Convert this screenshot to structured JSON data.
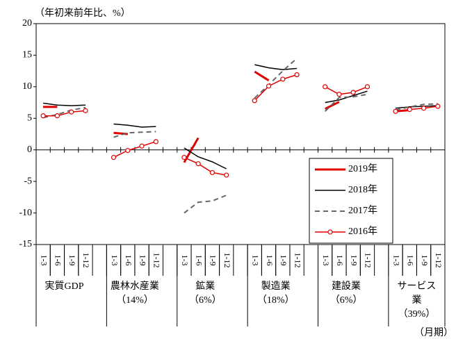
{
  "chart_data": {
    "type": "line",
    "y_axis_label": "（年初来前年比、%）",
    "x_axis_label": "（月期）",
    "ylim": [
      -15,
      20
    ],
    "yticks": [
      20,
      15,
      10,
      5,
      0,
      -5,
      -10,
      -15
    ],
    "grid": false,
    "legend_position": "lower-right",
    "categories": [
      "1-3",
      "1-6",
      "1-9",
      "1-12",
      null,
      "1-3",
      "1-6",
      "1-9",
      "1-12",
      null,
      "1-3",
      "1-6",
      "1-9",
      "1-12",
      null,
      "1-3",
      "1-6",
      "1-9",
      "1-12",
      null,
      "1-3",
      "1-6",
      "1-9",
      "1-12",
      null,
      "1-3",
      "1-6",
      "1-9",
      "1-12"
    ],
    "groups": [
      [
        "実質GDP"
      ],
      [
        "農林水産業",
        "（14%）"
      ],
      [
        "鉱業",
        "（6%）"
      ],
      [
        "製造業",
        "（18%）"
      ],
      [
        "建設業",
        "（6%）"
      ],
      [
        "サービス",
        "業",
        "（39%）"
      ]
    ],
    "series": [
      {
        "name": "2019年",
        "color": "#e00000",
        "style": "bold",
        "values": [
          6.8,
          6.8,
          null,
          null,
          null,
          2.7,
          2.5,
          null,
          null,
          null,
          -2.0,
          1.9,
          null,
          null,
          null,
          12.4,
          11.0,
          null,
          null,
          null,
          6.5,
          7.6,
          null,
          null,
          null,
          6.1,
          6.3,
          null,
          null
        ]
      },
      {
        "name": "2018年",
        "color": "#000000",
        "style": "solid",
        "values": [
          7.4,
          7.1,
          7.0,
          7.1,
          null,
          4.1,
          3.9,
          3.6,
          3.7,
          null,
          0.3,
          -1.1,
          -1.9,
          -3.0,
          null,
          13.5,
          13.0,
          12.7,
          12.9,
          null,
          7.5,
          7.9,
          8.6,
          9.3,
          null,
          6.6,
          6.8,
          6.9,
          7.0
        ]
      },
      {
        "name": "2017年",
        "color": "#666666",
        "style": "dashed",
        "values": [
          5.1,
          5.6,
          6.3,
          6.7,
          null,
          2.0,
          2.7,
          2.8,
          2.9,
          null,
          -10.0,
          -8.3,
          -8.1,
          -7.2,
          null,
          8.2,
          10.3,
          12.5,
          14.5,
          null,
          6.1,
          8.3,
          8.4,
          8.8,
          null,
          6.3,
          6.8,
          7.2,
          7.3
        ]
      },
      {
        "name": "2016年",
        "color": "#e00000",
        "style": "marker",
        "values": [
          5.4,
          5.4,
          6.0,
          6.2,
          null,
          -1.2,
          -0.1,
          0.6,
          1.3,
          null,
          -1.2,
          -2.2,
          -3.6,
          -4.0,
          null,
          7.8,
          10.1,
          11.2,
          11.9,
          null,
          10.0,
          8.8,
          9.1,
          10.0,
          null,
          6.1,
          6.4,
          6.6,
          6.9
        ]
      }
    ]
  }
}
